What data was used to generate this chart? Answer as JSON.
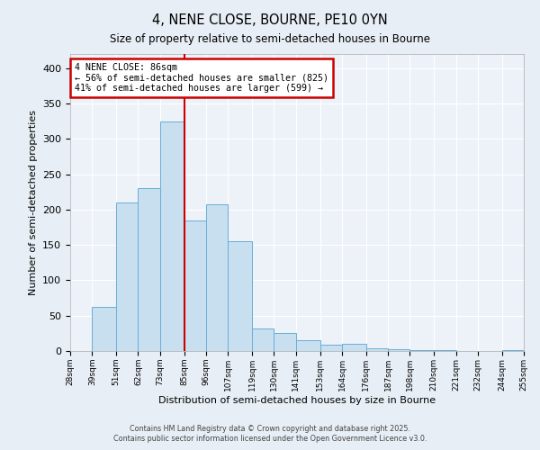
{
  "title": "4, NENE CLOSE, BOURNE, PE10 0YN",
  "subtitle": "Size of property relative to semi-detached houses in Bourne",
  "xlabel": "Distribution of semi-detached houses by size in Bourne",
  "ylabel": "Number of semi-detached properties",
  "categories": [
    "28sqm",
    "39sqm",
    "51sqm",
    "62sqm",
    "73sqm",
    "85sqm",
    "96sqm",
    "107sqm",
    "119sqm",
    "130sqm",
    "141sqm",
    "153sqm",
    "164sqm",
    "176sqm",
    "187sqm",
    "198sqm",
    "210sqm",
    "221sqm",
    "232sqm",
    "244sqm",
    "255sqm"
  ],
  "bin_edges": [
    28,
    39,
    51,
    62,
    73,
    85,
    96,
    107,
    119,
    130,
    141,
    153,
    164,
    176,
    187,
    198,
    210,
    221,
    232,
    244,
    255
  ],
  "values": [
    0,
    62,
    210,
    230,
    325,
    185,
    207,
    155,
    32,
    25,
    15,
    9,
    10,
    4,
    2,
    1,
    1,
    0,
    0,
    1
  ],
  "bar_color": "#c8dff0",
  "bar_edge_color": "#6aaed6",
  "vline_color": "#cc0000",
  "vline_x": 85,
  "annotation_title": "4 NENE CLOSE: 86sqm",
  "annotation_line1": "← 56% of semi-detached houses are smaller (825)",
  "annotation_line2": "41% of semi-detached houses are larger (599) →",
  "annotation_box_color": "#cc0000",
  "annotation_bg": "#ffffff",
  "ylim": [
    0,
    420
  ],
  "yticks": [
    0,
    50,
    100,
    150,
    200,
    250,
    300,
    350,
    400
  ],
  "footer1": "Contains HM Land Registry data © Crown copyright and database right 2025.",
  "footer2": "Contains public sector information licensed under the Open Government Licence v3.0.",
  "bg_color": "#e8eef5",
  "plot_bg_color": "#edf2f8"
}
